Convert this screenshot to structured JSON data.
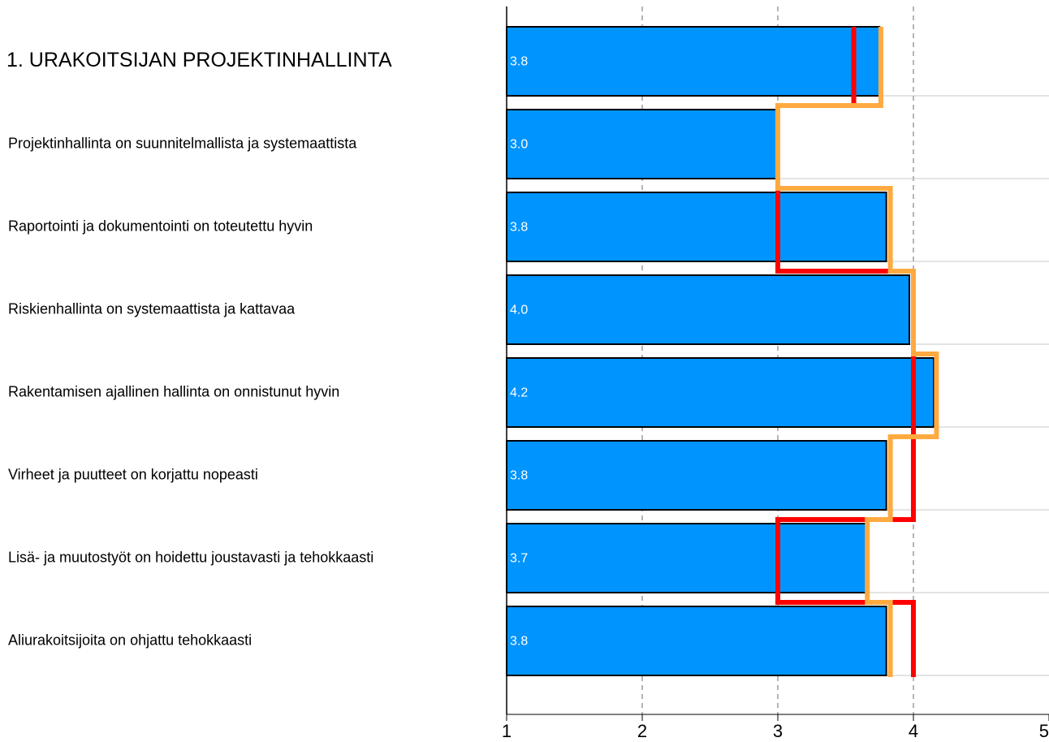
{
  "chart_data": {
    "type": "bar",
    "categories": [
      "1. URAKOITSIJAN PROJEKTINHALLINTA",
      "Projektinhallinta on suunnitelmallista ja systemaattista",
      "Raportointi ja dokumentointi on toteutettu hyvin",
      "Riskienhallinta on systemaattista ja kattavaa",
      "Rakentamisen ajallinen hallinta on onnistunut hyvin",
      "Virheet ja puutteet on korjattu nopeasti",
      "Lisä- ja muutostyöt on hoidettu joustavasti ja tehokkaasti",
      "Aliurakoitsijoita on ohjattu tehokkaasti"
    ],
    "values": [
      3.75,
      3.0,
      3.8,
      3.97,
      4.15,
      3.8,
      3.65,
      3.8
    ],
    "value_labels": [
      "3.8",
      "3.0",
      "3.8",
      "4.0",
      "4.2",
      "3.8",
      "3.7",
      "3.8"
    ],
    "color": "#0094ff",
    "lines": [
      {
        "type": "step",
        "color": "#ff0000",
        "values": [
          3.56,
          3.0,
          3.0,
          4.0,
          4.0,
          4.0,
          3.0,
          4.0
        ]
      },
      {
        "type": "step",
        "color": "#ffaa40",
        "values": [
          3.76,
          3.0,
          3.83,
          4.0,
          4.17,
          3.83,
          3.66,
          3.83
        ]
      }
    ],
    "xlim": [
      1,
      5
    ],
    "xticks": [
      1,
      2,
      3,
      4,
      5
    ],
    "grid": true
  }
}
